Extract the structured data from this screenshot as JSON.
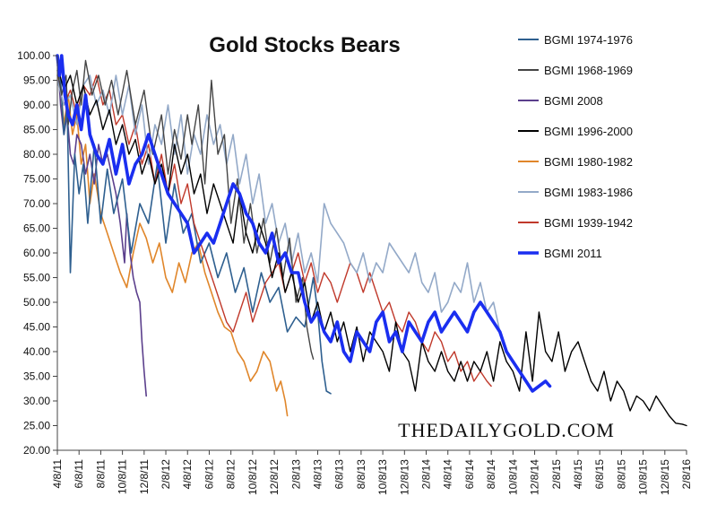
{
  "chart_data": {
    "type": "line",
    "title": "Gold Stocks Bears",
    "xlabel": "",
    "ylabel": "",
    "ylim": [
      20,
      100
    ],
    "yticks": [
      "20.00",
      "25.00",
      "30.00",
      "35.00",
      "40.00",
      "45.00",
      "50.00",
      "55.00",
      "60.00",
      "65.00",
      "70.00",
      "75.00",
      "80.00",
      "85.00",
      "90.00",
      "95.00",
      "100.00"
    ],
    "x_categories": [
      "4/8/11",
      "6/8/11",
      "8/8/11",
      "10/8/11",
      "12/8/11",
      "2/8/12",
      "4/8/12",
      "6/8/12",
      "8/8/12",
      "10/8/12",
      "12/8/12",
      "2/8/13",
      "4/8/13",
      "6/8/13",
      "8/8/13",
      "10/8/13",
      "12/8/13",
      "2/8/14",
      "4/8/14",
      "6/8/14",
      "8/8/14",
      "10/8/14",
      "12/8/14",
      "2/8/15",
      "4/8/15",
      "6/8/15",
      "8/8/15",
      "10/8/15",
      "12/8/15",
      "2/8/16"
    ],
    "grid": false,
    "legend_position": "right",
    "series": [
      {
        "name": "BGMI 1974-1976",
        "color": "#2e5f8f",
        "width": 1.6,
        "x": [
          0,
          0.15,
          0.3,
          0.45,
          0.6,
          0.8,
          1,
          1.2,
          1.4,
          1.7,
          2,
          2.3,
          2.6,
          3,
          3.4,
          3.8,
          4.2,
          4.6,
          5,
          5.4,
          5.8,
          6.2,
          6.6,
          7,
          7.4,
          7.8,
          8.2,
          8.6,
          9,
          9.4,
          9.8,
          10.2,
          10.6,
          11,
          11.4,
          11.8,
          12,
          12.2,
          12.4,
          12.6
        ],
        "values": [
          100,
          95,
          84,
          90,
          56,
          80,
          72,
          78,
          66,
          82,
          66,
          77,
          68,
          75,
          60,
          70,
          66,
          78,
          62,
          74,
          64,
          68,
          58,
          62,
          55,
          60,
          52,
          57,
          48,
          56,
          50,
          53,
          44,
          47,
          45,
          55,
          48,
          38,
          32,
          31.5
        ]
      },
      {
        "name": "BGMI 1968-1969",
        "color": "#444444",
        "width": 1.4,
        "x": [
          0,
          0.2,
          0.4,
          0.5,
          0.7,
          0.9,
          1.1,
          1.3,
          1.6,
          1.9,
          2.2,
          2.5,
          2.8,
          3.2,
          3.6,
          4,
          4.4,
          4.8,
          5.1,
          5.4,
          5.7,
          6,
          6.2,
          6.5,
          6.8,
          7.1,
          7.4,
          7.7,
          8,
          8.3,
          8.6,
          8.9,
          9.2,
          9.5,
          9.8,
          10.1,
          10.4,
          10.7,
          11,
          11.3,
          11.5,
          11.7,
          11.8
        ],
        "values": [
          97,
          92,
          96,
          86,
          93,
          97,
          90,
          99,
          92,
          96,
          90,
          95,
          88,
          97,
          86,
          93,
          80,
          88,
          76,
          85,
          79,
          88,
          82,
          90,
          74,
          95,
          80,
          84,
          66,
          75,
          62,
          70,
          60,
          67,
          58,
          65,
          55,
          63,
          50,
          55,
          45,
          40,
          38.5
        ]
      },
      {
        "name": "BGMI 2008",
        "color": "#5b3f8c",
        "width": 1.6,
        "x": [
          0,
          0.15,
          0.3,
          0.45,
          0.6,
          0.75,
          0.9,
          1.1,
          1.3,
          1.5,
          1.7,
          1.9,
          2.1,
          2.3,
          2.5,
          2.7,
          2.9,
          3,
          3.1,
          3.2,
          3.35,
          3.5,
          3.65,
          3.8,
          3.9,
          4.0,
          4.1
        ],
        "values": [
          100,
          90,
          84,
          88,
          80,
          78,
          84,
          82,
          76,
          80,
          74,
          82,
          78,
          80,
          76,
          72,
          66,
          62,
          58,
          68,
          60,
          55,
          52,
          50,
          42,
          36,
          31
        ]
      },
      {
        "name": "BGMI 1996-2000",
        "color": "#000000",
        "width": 1.4,
        "x": [
          0,
          0.3,
          0.6,
          0.9,
          1.2,
          1.5,
          1.8,
          2.1,
          2.4,
          2.7,
          3,
          3.3,
          3.6,
          3.9,
          4.2,
          4.5,
          4.8,
          5.1,
          5.4,
          5.7,
          6,
          6.3,
          6.6,
          6.9,
          7.2,
          7.5,
          7.8,
          8.1,
          8.4,
          8.7,
          9,
          9.3,
          9.6,
          9.9,
          10.2,
          10.5,
          10.8,
          11.1,
          11.4,
          11.7,
          12,
          12.3,
          12.6,
          12.9,
          13.2,
          13.5,
          13.8,
          14.1,
          14.4,
          14.7,
          15,
          15.3,
          15.6,
          15.9,
          16.2,
          16.5,
          16.8,
          17.1,
          17.4,
          17.7,
          18,
          18.3,
          18.6,
          18.9,
          19.2,
          19.5,
          19.8,
          20.1,
          20.4,
          20.7,
          21,
          21.3,
          21.6,
          21.9,
          22.2,
          22.5,
          22.8,
          23.1,
          23.4,
          23.7,
          24,
          24.3,
          24.6,
          24.9,
          25.2,
          25.5,
          25.8,
          26.1,
          26.4,
          26.7,
          27,
          27.3,
          27.6,
          27.9,
          28.2,
          28.5,
          28.8,
          29
        ],
        "values": [
          98,
          93,
          96,
          90,
          94,
          88,
          91,
          85,
          89,
          82,
          86,
          80,
          83,
          76,
          80,
          74,
          78,
          72,
          82,
          76,
          80,
          72,
          76,
          68,
          74,
          70,
          66,
          62,
          72,
          64,
          60,
          66,
          62,
          55,
          60,
          52,
          56,
          50,
          54,
          46,
          50,
          44,
          48,
          42,
          46,
          40,
          45,
          38,
          44,
          42,
          40,
          36,
          46,
          40,
          38,
          32,
          42,
          38,
          36,
          40,
          36,
          34,
          38,
          34,
          38,
          36,
          40,
          34,
          42,
          38,
          36,
          32,
          44,
          34,
          48,
          40,
          38,
          44,
          36,
          40,
          42,
          38,
          34,
          32,
          36,
          30,
          34,
          32,
          28,
          31,
          30,
          28,
          31,
          29,
          27,
          25.5,
          25.3,
          25
        ]
      },
      {
        "name": "BGMI 1980-1982",
        "color": "#e0862a",
        "width": 1.6,
        "x": [
          0,
          0.15,
          0.3,
          0.5,
          0.7,
          0.9,
          1.1,
          1.3,
          1.5,
          1.7,
          2,
          2.3,
          2.6,
          2.9,
          3.2,
          3.5,
          3.8,
          4.1,
          4.4,
          4.7,
          5,
          5.3,
          5.6,
          5.9,
          6.2,
          6.5,
          6.8,
          7.1,
          7.4,
          7.7,
          8,
          8.3,
          8.6,
          8.9,
          9.2,
          9.5,
          9.8,
          10.1,
          10.3,
          10.5,
          10.6
        ],
        "values": [
          96,
          94,
          86,
          92,
          84,
          88,
          78,
          82,
          70,
          76,
          68,
          64,
          60,
          56,
          53,
          60,
          66,
          63,
          58,
          62,
          55,
          52,
          58,
          54,
          60,
          62,
          56,
          52,
          48,
          45,
          44,
          40,
          38,
          34,
          36,
          40,
          38,
          32,
          34,
          30,
          27
        ]
      },
      {
        "name": "BGMI 1983-1986",
        "color": "#93a9c8",
        "width": 1.6,
        "x": [
          0,
          0.3,
          0.6,
          0.9,
          1.2,
          1.5,
          1.8,
          2.1,
          2.4,
          2.7,
          3,
          3.3,
          3.6,
          3.9,
          4.2,
          4.5,
          4.8,
          5.1,
          5.4,
          5.7,
          6,
          6.3,
          6.6,
          6.9,
          7.2,
          7.5,
          7.8,
          8.1,
          8.4,
          8.7,
          9,
          9.3,
          9.6,
          9.9,
          10.2,
          10.5,
          10.8,
          11.1,
          11.4,
          11.7,
          12,
          12.3,
          12.6,
          12.9,
          13.2,
          13.5,
          13.8,
          14.1,
          14.4,
          14.7,
          15,
          15.3,
          15.6,
          15.9,
          16.2,
          16.5,
          16.8,
          17.1,
          17.4,
          17.7,
          18,
          18.3,
          18.6,
          18.9,
          19.2,
          19.5,
          19.8,
          20.1,
          20.4,
          20.7,
          21
        ],
        "values": [
          95,
          90,
          92,
          86,
          94,
          96,
          90,
          93,
          88,
          96,
          88,
          94,
          84,
          90,
          78,
          86,
          82,
          90,
          80,
          88,
          76,
          84,
          80,
          88,
          82,
          86,
          78,
          84,
          74,
          80,
          70,
          76,
          66,
          70,
          62,
          66,
          58,
          64,
          56,
          60,
          54,
          70,
          66,
          64,
          62,
          58,
          56,
          60,
          54,
          58,
          56,
          62,
          60,
          58,
          56,
          60,
          54,
          52,
          56,
          48,
          50,
          54,
          52,
          58,
          50,
          54,
          48,
          50,
          44,
          40,
          38
        ]
      },
      {
        "name": "BGMI 1939-1942",
        "color": "#c0392b",
        "width": 1.4,
        "x": [
          0,
          0.3,
          0.6,
          0.9,
          1.2,
          1.5,
          1.8,
          2.1,
          2.4,
          2.7,
          3,
          3.3,
          3.6,
          3.9,
          4.2,
          4.5,
          4.8,
          5.1,
          5.4,
          5.7,
          6,
          6.3,
          6.6,
          6.9,
          7.2,
          7.5,
          7.8,
          8.1,
          8.4,
          8.7,
          9,
          9.3,
          9.6,
          9.9,
          10.2,
          10.5,
          10.8,
          11.1,
          11.4,
          11.7,
          12,
          12.3,
          12.6,
          12.9,
          13.2,
          13.5,
          13.8,
          14.1,
          14.4,
          14.7,
          15,
          15.3,
          15.6,
          15.9,
          16.2,
          16.5,
          16.8,
          17.1,
          17.4,
          17.7,
          18,
          18.3,
          18.6,
          18.9,
          19.2,
          19.5,
          19.8,
          20
        ],
        "values": [
          95,
          90,
          93,
          88,
          94,
          92,
          96,
          90,
          93,
          86,
          88,
          82,
          86,
          78,
          82,
          74,
          80,
          72,
          78,
          70,
          74,
          66,
          62,
          58,
          54,
          50,
          46,
          44,
          48,
          52,
          46,
          50,
          54,
          56,
          58,
          52,
          56,
          60,
          54,
          58,
          52,
          56,
          54,
          50,
          54,
          58,
          56,
          52,
          56,
          52,
          48,
          50,
          46,
          44,
          48,
          46,
          42,
          40,
          44,
          42,
          38,
          40,
          36,
          38,
          34,
          36,
          34,
          33
        ]
      },
      {
        "name": "BGMI 2011",
        "color": "#1a2ef0",
        "width": 3.6,
        "x": [
          0,
          0.1,
          0.2,
          0.35,
          0.5,
          0.7,
          0.9,
          1.1,
          1.3,
          1.5,
          1.8,
          2.1,
          2.4,
          2.7,
          3,
          3.3,
          3.6,
          3.9,
          4.2,
          4.5,
          4.8,
          5.1,
          5.4,
          5.7,
          6,
          6.3,
          6.6,
          6.9,
          7.2,
          7.5,
          7.8,
          8.1,
          8.4,
          8.7,
          9,
          9.3,
          9.6,
          9.9,
          10.2,
          10.5,
          10.8,
          11.1,
          11.4,
          11.7,
          12,
          12.3,
          12.6,
          12.9,
          13.2,
          13.5,
          13.8,
          14.1,
          14.4,
          14.7,
          15,
          15.3,
          15.6,
          15.9,
          16.2,
          16.5,
          16.8,
          17.1,
          17.4,
          17.7,
          18,
          18.3,
          18.6,
          18.9,
          19.2,
          19.5,
          19.8,
          20.1,
          20.4,
          20.7,
          21,
          21.3,
          21.6,
          21.9,
          22.2,
          22.5,
          22.7
        ],
        "values": [
          100,
          96,
          100,
          92,
          88,
          86,
          90,
          85,
          92,
          84,
          80,
          78,
          83,
          76,
          82,
          74,
          78,
          80,
          84,
          80,
          76,
          72,
          70,
          68,
          66,
          60,
          62,
          64,
          62,
          66,
          70,
          74,
          72,
          68,
          66,
          62,
          60,
          64,
          58,
          60,
          56,
          56,
          50,
          46,
          48,
          44,
          42,
          46,
          40,
          38,
          44,
          42,
          40,
          46,
          48,
          42,
          44,
          40,
          46,
          44,
          42,
          46,
          48,
          44,
          46,
          48,
          46,
          44,
          48,
          50,
          48,
          46,
          44,
          40,
          38,
          36,
          34,
          32,
          33,
          34,
          33
        ]
      }
    ]
  },
  "legend_title": "",
  "watermark": "THEDAILYGOLD.COM"
}
